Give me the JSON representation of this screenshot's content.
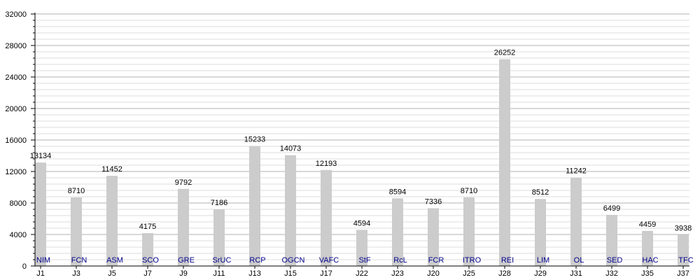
{
  "chart_data": {
    "type": "bar",
    "categories": [
      "J1",
      "J3",
      "J5",
      "J7",
      "J9",
      "J11",
      "J13",
      "J15",
      "J17",
      "J22",
      "J23",
      "J20",
      "J25",
      "J28",
      "J29",
      "J31",
      "J32",
      "J35",
      "J37"
    ],
    "teams": [
      "NIM",
      "FCN",
      "ASM",
      "SCO",
      "GRE",
      "SrUC",
      "RCP",
      "OGCN",
      "VAFC",
      "StF",
      "RcL",
      "FCR",
      "ITRO",
      "REI",
      "LIM",
      "OL",
      "SED",
      "HAC",
      "TFC"
    ],
    "values": [
      13134,
      8710,
      11452,
      4175,
      9792,
      7186,
      15233,
      14073,
      12193,
      4594,
      8594,
      7336,
      8710,
      26252,
      8512,
      11242,
      6499,
      4459,
      3938
    ],
    "yticks": [
      0,
      4000,
      8000,
      12000,
      16000,
      20000,
      24000,
      28000,
      32000
    ],
    "ylim": [
      0,
      32000
    ],
    "minor_step": 800,
    "grid": true,
    "title": "",
    "xlabel": "",
    "ylabel": "",
    "colors": {
      "bar": "#cccccc",
      "major_grid": "#b0b0b0",
      "minor_grid": "#dddddd",
      "team_label": "#00008b",
      "axis": "#000000"
    }
  }
}
